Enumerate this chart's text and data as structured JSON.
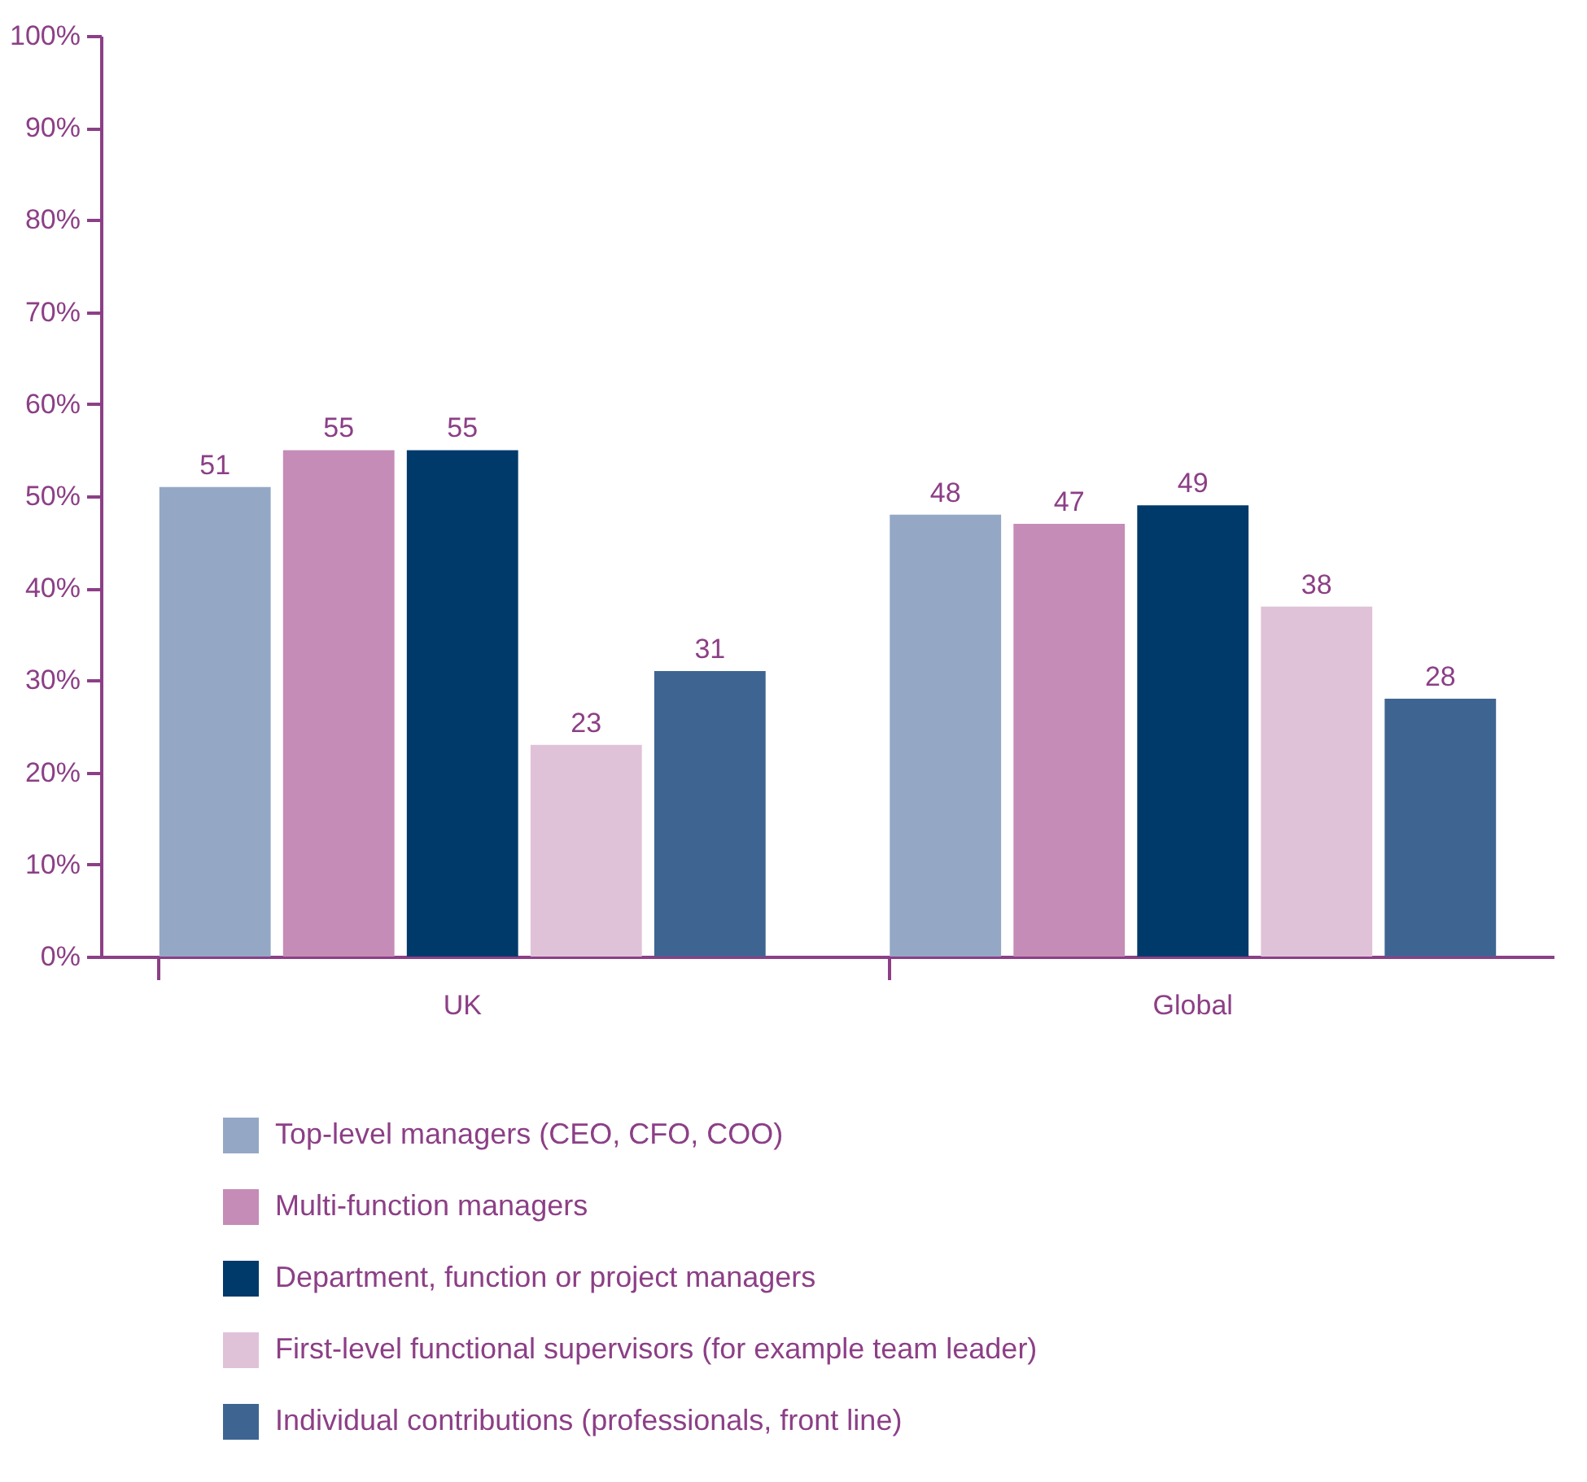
{
  "chart_data": {
    "type": "bar",
    "categories": [
      "UK",
      "Global"
    ],
    "series": [
      {
        "name": "Top-level managers (CEO, CFO, COO)",
        "color": "#94a8c6",
        "values": [
          51,
          48
        ]
      },
      {
        "name": "Multi-function managers",
        "color": "#c58cb7",
        "values": [
          55,
          47
        ]
      },
      {
        "name": "Department, function or project managers",
        "color": "#003a6b",
        "values": [
          55,
          49
        ]
      },
      {
        "name": "First-level functional supervisors (for example team leader)",
        "color": "#e0c2d8",
        "values": [
          23,
          38
        ]
      },
      {
        "name": "Individual contributions (professionals, front line)",
        "color": "#3e6592",
        "values": [
          31,
          28
        ]
      }
    ],
    "ylim": [
      0,
      100
    ],
    "yticks": [
      {
        "value": 0,
        "label": "0%"
      },
      {
        "value": 10,
        "label": "10%"
      },
      {
        "value": 20,
        "label": "20%"
      },
      {
        "value": 30,
        "label": "30%"
      },
      {
        "value": 40,
        "label": "40%"
      },
      {
        "value": 50,
        "label": "50%"
      },
      {
        "value": 60,
        "label": "60%"
      },
      {
        "value": 70,
        "label": "70%"
      },
      {
        "value": 80,
        "label": "80%"
      },
      {
        "value": 90,
        "label": "90%"
      },
      {
        "value": 100,
        "label": "100%"
      }
    ],
    "data_labels": true,
    "grid": false,
    "legend": "bottom"
  }
}
